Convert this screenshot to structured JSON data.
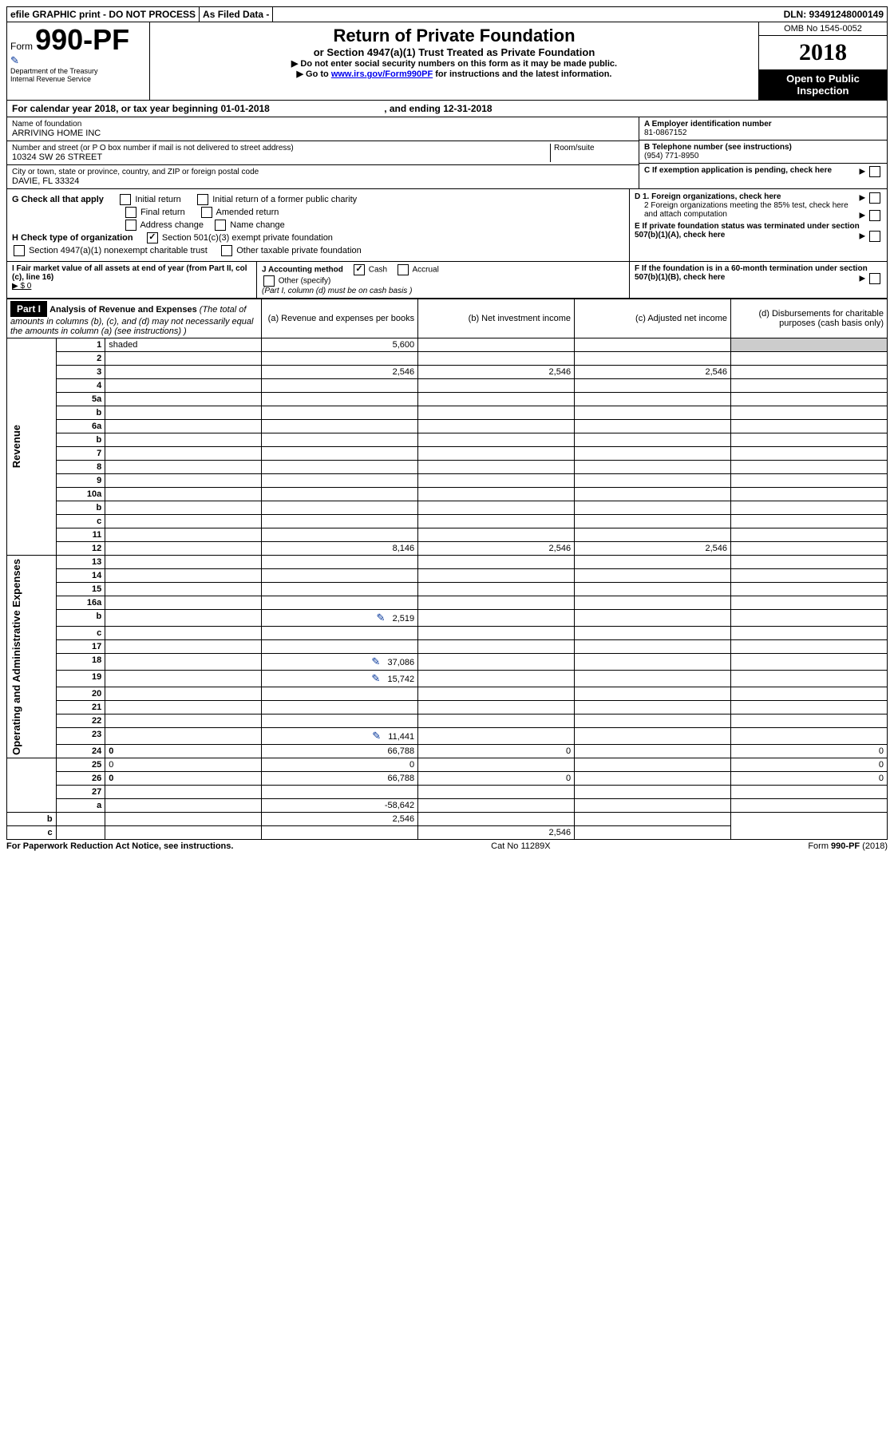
{
  "topbar": {
    "efile": "efile GRAPHIC print - DO NOT PROCESS",
    "asfiled": "As Filed Data -",
    "dln": "DLN: 93491248000149"
  },
  "header": {
    "form_prefix": "Form",
    "form_num": "990-PF",
    "dept1": "Department of the Treasury",
    "dept2": "Internal Revenue Service",
    "title": "Return of Private Foundation",
    "subtitle": "or Section 4947(a)(1) Trust Treated as Private Foundation",
    "inst1": "▶ Do not enter social security numbers on this form as it may be made public.",
    "inst2_pre": "▶ Go to ",
    "inst2_link": "www.irs.gov/Form990PF",
    "inst2_post": " for instructions and the latest information.",
    "omb": "OMB No 1545-0052",
    "year": "2018",
    "open": "Open to Public Inspection"
  },
  "calyear": {
    "text_pre": "For calendar year 2018, or tax year beginning ",
    "begin": "01-01-2018",
    "text_mid": " , and ending ",
    "end": "12-31-2018"
  },
  "info": {
    "name_label": "Name of foundation",
    "name": "ARRIVING HOME INC",
    "addr_label": "Number and street (or P O  box number if mail is not delivered to street address)",
    "room_label": "Room/suite",
    "addr": "10324 SW 26 STREET",
    "city_label": "City or town, state or province, country, and ZIP or foreign postal code",
    "city": "DAVIE, FL  33324",
    "a_label": "A Employer identification number",
    "a_val": "81-0867152",
    "b_label": "B Telephone number (see instructions)",
    "b_val": "(954) 771-8950",
    "c_label": "C If exemption application is pending, check here",
    "d1_label": "D 1. Foreign organizations, check here",
    "d2_label": "2 Foreign organizations meeting the 85% test, check here and attach computation",
    "e_label": "E If private foundation status was terminated under section 507(b)(1)(A), check here",
    "f_label": "F If the foundation is in a 60-month termination under section 507(b)(1)(B), check here"
  },
  "checks": {
    "g_label": "G Check all that apply",
    "g_opts": [
      "Initial return",
      "Initial return of a former public charity",
      "Final return",
      "Amended return",
      "Address change",
      "Name change"
    ],
    "h_label": "H Check type of organization",
    "h_501c3": "Section 501(c)(3) exempt private foundation",
    "h_4947": "Section 4947(a)(1) nonexempt charitable trust",
    "h_other": "Other taxable private foundation",
    "i_label": "I Fair market value of all assets at end of year (from Part II, col (c), line 16)",
    "i_val": "▶ $  0",
    "j_label": "J Accounting method",
    "j_cash": "Cash",
    "j_accrual": "Accrual",
    "j_other": "Other (specify)",
    "j_note": "(Part I, column (d) must be on cash basis )"
  },
  "part1": {
    "label": "Part I",
    "title": "Analysis of Revenue and Expenses",
    "note": " (The total of amounts in columns (b), (c), and (d) may not necessarily equal the amounts in column (a) (see instructions) )",
    "col_a": "(a) Revenue and expenses per books",
    "col_b": "(b) Net investment income",
    "col_c": "(c) Adjusted net income",
    "col_d": "(d) Disbursements for charitable purposes (cash basis only)"
  },
  "side_labels": {
    "revenue": "Revenue",
    "expenses": "Operating and Administrative Expenses"
  },
  "rows": [
    {
      "n": "1",
      "d": "shaded",
      "a": "5,600",
      "b": "",
      "c": ""
    },
    {
      "n": "2",
      "d": "",
      "a": "",
      "b": "",
      "c": ""
    },
    {
      "n": "3",
      "d": "",
      "a": "2,546",
      "b": "2,546",
      "c": "2,546"
    },
    {
      "n": "4",
      "d": "",
      "a": "",
      "b": "",
      "c": ""
    },
    {
      "n": "5a",
      "d": "",
      "a": "",
      "b": "",
      "c": ""
    },
    {
      "n": "b",
      "d": "",
      "a": "",
      "b": "",
      "c": ""
    },
    {
      "n": "6a",
      "d": "",
      "a": "",
      "b": "",
      "c": ""
    },
    {
      "n": "b",
      "d": "",
      "a": "",
      "b": "",
      "c": ""
    },
    {
      "n": "7",
      "d": "",
      "a": "",
      "b": "",
      "c": ""
    },
    {
      "n": "8",
      "d": "",
      "a": "",
      "b": "",
      "c": ""
    },
    {
      "n": "9",
      "d": "",
      "a": "",
      "b": "",
      "c": ""
    },
    {
      "n": "10a",
      "d": "",
      "a": "",
      "b": "",
      "c": ""
    },
    {
      "n": "b",
      "d": "",
      "a": "",
      "b": "",
      "c": ""
    },
    {
      "n": "c",
      "d": "",
      "a": "",
      "b": "",
      "c": ""
    },
    {
      "n": "11",
      "d": "",
      "a": "",
      "b": "",
      "c": ""
    },
    {
      "n": "12",
      "d": "",
      "bold": true,
      "a": "8,146",
      "b": "2,546",
      "c": "2,546"
    },
    {
      "n": "13",
      "d": "",
      "section": "exp",
      "a": "",
      "b": "",
      "c": ""
    },
    {
      "n": "14",
      "d": "",
      "a": "",
      "b": "",
      "c": ""
    },
    {
      "n": "15",
      "d": "",
      "a": "",
      "b": "",
      "c": ""
    },
    {
      "n": "16a",
      "d": "",
      "a": "",
      "b": "",
      "c": ""
    },
    {
      "n": "b",
      "d": "",
      "icon": true,
      "a": "2,519",
      "b": "",
      "c": ""
    },
    {
      "n": "c",
      "d": "",
      "a": "",
      "b": "",
      "c": ""
    },
    {
      "n": "17",
      "d": "",
      "a": "",
      "b": "",
      "c": ""
    },
    {
      "n": "18",
      "d": "",
      "icon": true,
      "a": "37,086",
      "b": "",
      "c": ""
    },
    {
      "n": "19",
      "d": "",
      "icon": true,
      "a": "15,742",
      "b": "",
      "c": ""
    },
    {
      "n": "20",
      "d": "",
      "a": "",
      "b": "",
      "c": ""
    },
    {
      "n": "21",
      "d": "",
      "a": "",
      "b": "",
      "c": ""
    },
    {
      "n": "22",
      "d": "",
      "a": "",
      "b": "",
      "c": ""
    },
    {
      "n": "23",
      "d": "",
      "icon": true,
      "a": "11,441",
      "b": "",
      "c": ""
    },
    {
      "n": "24",
      "d": "0",
      "bold": true,
      "a": "66,788",
      "b": "0",
      "c": ""
    },
    {
      "n": "25",
      "d": "0",
      "a": "0",
      "b": "",
      "c": ""
    },
    {
      "n": "26",
      "d": "0",
      "bold": true,
      "a": "66,788",
      "b": "0",
      "c": ""
    },
    {
      "n": "27",
      "d": "",
      "a": "",
      "b": "",
      "c": ""
    },
    {
      "n": "a",
      "d": "",
      "bold": true,
      "a": "-58,642",
      "b": "",
      "c": ""
    },
    {
      "n": "b",
      "d": "",
      "bold": true,
      "a": "",
      "b": "2,546",
      "c": ""
    },
    {
      "n": "c",
      "d": "",
      "bold": true,
      "a": "",
      "b": "",
      "c": "2,546"
    }
  ],
  "footer": {
    "left": "For Paperwork Reduction Act Notice, see instructions.",
    "mid": "Cat No 11289X",
    "right": "Form 990-PF (2018)"
  }
}
